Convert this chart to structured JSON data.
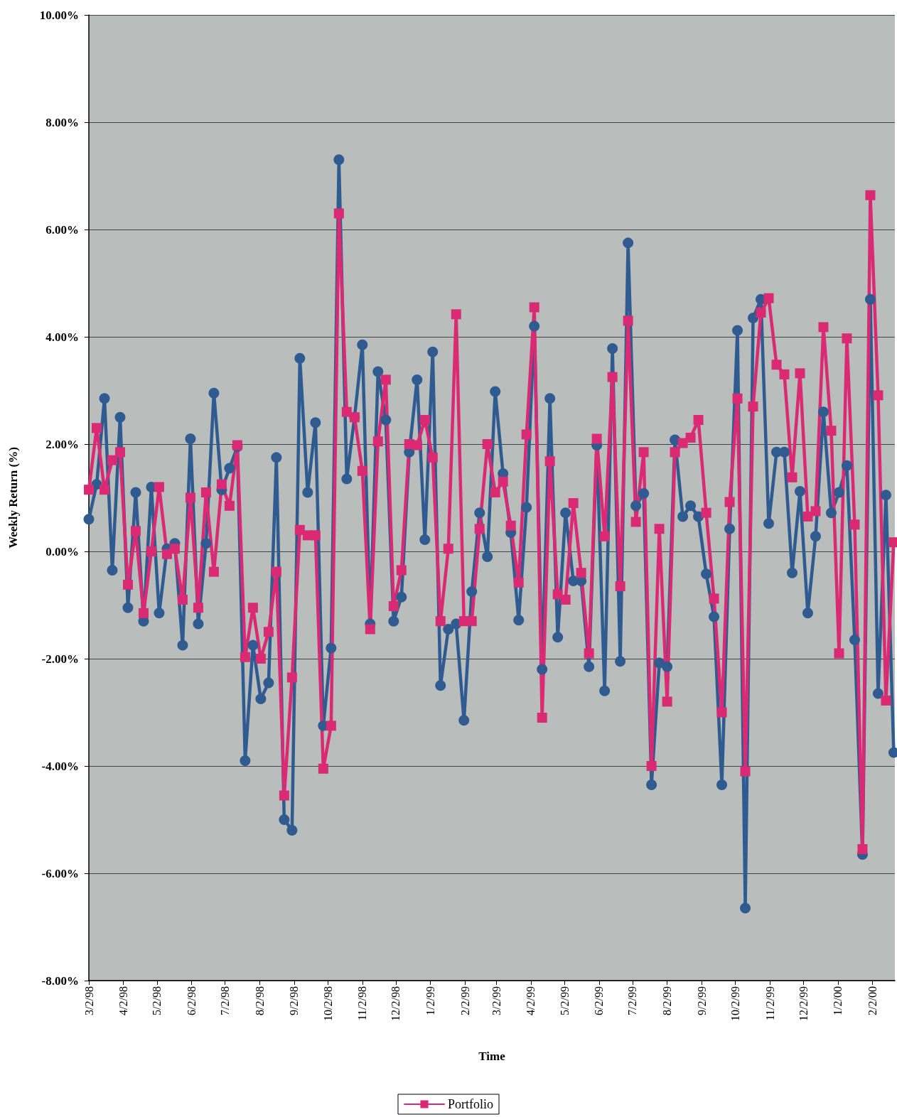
{
  "chart_data": {
    "type": "line",
    "xlabel": "Time",
    "ylabel": "Weekly Return (%)",
    "x": [
      "1998-03-02",
      "1998-03-09",
      "1998-03-16",
      "1998-03-23",
      "1998-03-30",
      "1998-04-06",
      "1998-04-13",
      "1998-04-20",
      "1998-04-27",
      "1998-05-04",
      "1998-05-11",
      "1998-05-18",
      "1998-05-25",
      "1998-06-01",
      "1998-06-08",
      "1998-06-15",
      "1998-06-22",
      "1998-06-29",
      "1998-07-06",
      "1998-07-13",
      "1998-07-20",
      "1998-07-27",
      "1998-08-03",
      "1998-08-10",
      "1998-08-17",
      "1998-08-24",
      "1998-08-31",
      "1998-09-07",
      "1998-09-14",
      "1998-09-21",
      "1998-09-28",
      "1998-10-05",
      "1998-10-12",
      "1998-10-19",
      "1998-10-26",
      "1998-11-02",
      "1998-11-09",
      "1998-11-16",
      "1998-11-23",
      "1998-11-30",
      "1998-12-07",
      "1998-12-14",
      "1998-12-21",
      "1998-12-28",
      "1999-01-04",
      "1999-01-11",
      "1999-01-18",
      "1999-01-25",
      "1999-02-01",
      "1999-02-08",
      "1999-02-15",
      "1999-02-22",
      "1999-03-01",
      "1999-03-08",
      "1999-03-15",
      "1999-03-22",
      "1999-03-29",
      "1999-04-05",
      "1999-04-12",
      "1999-04-19",
      "1999-04-26",
      "1999-05-03",
      "1999-05-10",
      "1999-05-17",
      "1999-05-24",
      "1999-05-31",
      "1999-06-07",
      "1999-06-14",
      "1999-06-21",
      "1999-06-28",
      "1999-07-05",
      "1999-07-12",
      "1999-07-19",
      "1999-07-26",
      "1999-08-02",
      "1999-08-09",
      "1999-08-16",
      "1999-08-23",
      "1999-08-30",
      "1999-09-06",
      "1999-09-13",
      "1999-09-20",
      "1999-09-27",
      "1999-10-04",
      "1999-10-11",
      "1999-10-18",
      "1999-10-25",
      "1999-11-01",
      "1999-11-08",
      "1999-11-15",
      "1999-11-22",
      "1999-11-29",
      "1999-12-06",
      "1999-12-13",
      "1999-12-20",
      "1999-12-27",
      "2000-01-03",
      "2000-01-10",
      "2000-01-17",
      "2000-01-24",
      "2000-01-31",
      "2000-02-07",
      "2000-02-14",
      "2000-02-21"
    ],
    "series": [
      {
        "color": "#2f5b91",
        "marker": "circle",
        "values": [
          0.6,
          1.25,
          2.85,
          -0.35,
          2.5,
          -1.05,
          1.1,
          -1.3,
          1.2,
          -1.15,
          0.05,
          0.15,
          -1.75,
          2.1,
          -1.35,
          0.15,
          2.95,
          1.15,
          1.55,
          1.95,
          -3.9,
          -1.75,
          -2.75,
          -2.45,
          1.75,
          -5.0,
          -5.2,
          3.6,
          1.1,
          2.4,
          -3.25,
          -1.8,
          7.3,
          1.35,
          2.5,
          3.85,
          -1.35,
          3.35,
          2.45,
          -1.3,
          -0.85,
          1.85,
          3.2,
          0.22,
          3.72,
          -2.5,
          -1.45,
          -1.35,
          -3.15,
          -0.75,
          0.72,
          -0.1,
          2.98,
          1.45,
          0.35,
          -1.28,
          0.82,
          4.2,
          -2.2,
          2.85,
          -1.6,
          0.72,
          -0.55,
          -0.55,
          -2.15,
          1.98,
          -2.6,
          3.78,
          -2.05,
          5.75,
          0.85,
          1.08,
          -4.35,
          -2.08,
          -2.15,
          2.08,
          0.65,
          0.85,
          0.65,
          -0.42,
          -1.22,
          -4.35,
          0.42,
          4.12,
          -6.65,
          4.35,
          4.7,
          0.52,
          1.85,
          1.85,
          -0.4,
          1.12,
          -1.15,
          0.28,
          2.6,
          0.72,
          1.1,
          1.6,
          -1.65,
          -5.65,
          4.7,
          -2.65,
          1.05,
          -3.75
        ]
      },
      {
        "name": "Portfolio",
        "color": "#d92a73",
        "marker": "square",
        "values": [
          1.15,
          2.3,
          1.15,
          1.7,
          1.85,
          -0.62,
          0.38,
          -1.15,
          0.0,
          1.2,
          -0.05,
          0.05,
          -0.9,
          1.0,
          -1.05,
          1.1,
          -0.38,
          1.25,
          0.85,
          1.98,
          -1.97,
          -1.05,
          -2.0,
          -1.5,
          -0.38,
          -4.55,
          -2.35,
          0.4,
          0.3,
          0.3,
          -4.05,
          -3.25,
          6.3,
          2.6,
          2.5,
          1.5,
          -1.45,
          2.05,
          3.2,
          -1.02,
          -0.35,
          2.0,
          1.98,
          2.45,
          1.75,
          -1.3,
          0.05,
          4.42,
          -1.3,
          -1.3,
          0.42,
          2.0,
          1.1,
          1.3,
          0.48,
          -0.58,
          2.18,
          4.55,
          -3.1,
          1.68,
          -0.8,
          -0.9,
          0.9,
          -0.4,
          -1.9,
          2.1,
          0.28,
          3.25,
          -0.65,
          4.3,
          0.55,
          1.85,
          -4.0,
          0.42,
          -2.8,
          1.85,
          2.02,
          2.12,
          2.45,
          0.72,
          -0.88,
          -3.0,
          0.92,
          2.85,
          -4.1,
          2.7,
          4.45,
          4.72,
          3.48,
          3.3,
          1.38,
          3.32,
          0.65,
          0.75,
          4.18,
          2.25,
          -1.9,
          3.97,
          0.5,
          -5.55,
          6.64,
          2.91,
          -2.78,
          0.17
        ]
      }
    ],
    "xlim": [
      "1998-03-02",
      "2000-02-22"
    ],
    "xticks": [
      {
        "value": "1998-03-02",
        "label": "3/2/98"
      },
      {
        "value": "1998-04-02",
        "label": "4/2/98"
      },
      {
        "value": "1998-05-02",
        "label": "5/2/98"
      },
      {
        "value": "1998-06-02",
        "label": "6/2/98"
      },
      {
        "value": "1998-07-02",
        "label": "7/2/98"
      },
      {
        "value": "1998-08-02",
        "label": "8/2/98"
      },
      {
        "value": "1998-09-02",
        "label": "9/2/98"
      },
      {
        "value": "1998-10-02",
        "label": "10/2/98"
      },
      {
        "value": "1998-11-02",
        "label": "11/2/98"
      },
      {
        "value": "1998-12-02",
        "label": "12/2/98"
      },
      {
        "value": "1999-01-02",
        "label": "1/2/99"
      },
      {
        "value": "1999-02-02",
        "label": "2/2/99"
      },
      {
        "value": "1999-03-02",
        "label": "3/2/99"
      },
      {
        "value": "1999-04-02",
        "label": "4/2/99"
      },
      {
        "value": "1999-05-02",
        "label": "5/2/99"
      },
      {
        "value": "1999-06-02",
        "label": "6/2/99"
      },
      {
        "value": "1999-07-02",
        "label": "7/2/99"
      },
      {
        "value": "1999-08-02",
        "label": "8/2/99"
      },
      {
        "value": "1999-09-02",
        "label": "9/2/99"
      },
      {
        "value": "1999-10-02",
        "label": "10/2/99"
      },
      {
        "value": "1999-11-02",
        "label": "11/2/99"
      },
      {
        "value": "1999-12-02",
        "label": "12/2/99"
      },
      {
        "value": "2000-01-02",
        "label": "1/2/00"
      },
      {
        "value": "2000-02-02",
        "label": "2/2/00"
      }
    ],
    "ylim": [
      -8,
      10
    ],
    "yticks": [
      {
        "value": -8,
        "label": "-8.00%"
      },
      {
        "value": -6,
        "label": "-6.00%"
      },
      {
        "value": -4,
        "label": "-4.00%"
      },
      {
        "value": -2,
        "label": "-2.00%"
      },
      {
        "value": 0,
        "label": "0.00%"
      },
      {
        "value": 2,
        "label": "2.00%"
      },
      {
        "value": 4,
        "label": "4.00%"
      },
      {
        "value": 6,
        "label": "6.00%"
      },
      {
        "value": 8,
        "label": "8.00%"
      },
      {
        "value": 10,
        "label": "10.00%"
      }
    ],
    "grid": "y",
    "legend": "bottom"
  }
}
